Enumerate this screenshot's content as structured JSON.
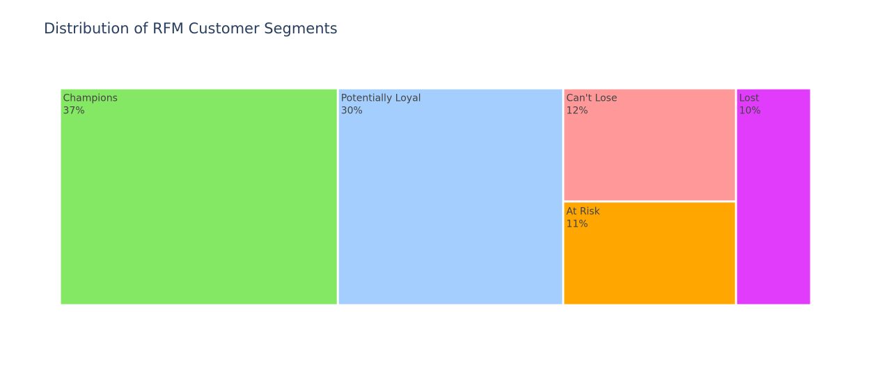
{
  "chart_data": {
    "type": "treemap",
    "title": "Distribution of RFM Customer Segments",
    "segments": [
      {
        "label": "Champions",
        "percent_text": "37%",
        "value": 37,
        "color": "#85e864"
      },
      {
        "label": "Potentially Loyal",
        "percent_text": "30%",
        "value": 30,
        "color": "#a4cefd"
      },
      {
        "label": "Can't Lose",
        "percent_text": "12%",
        "value": 12,
        "color": "#ff9999"
      },
      {
        "label": "At Risk",
        "percent_text": "11%",
        "value": 11,
        "color": "#ffa600"
      },
      {
        "label": "Lost",
        "percent_text": "10%",
        "value": 10,
        "color": "#e13cfb"
      }
    ]
  }
}
